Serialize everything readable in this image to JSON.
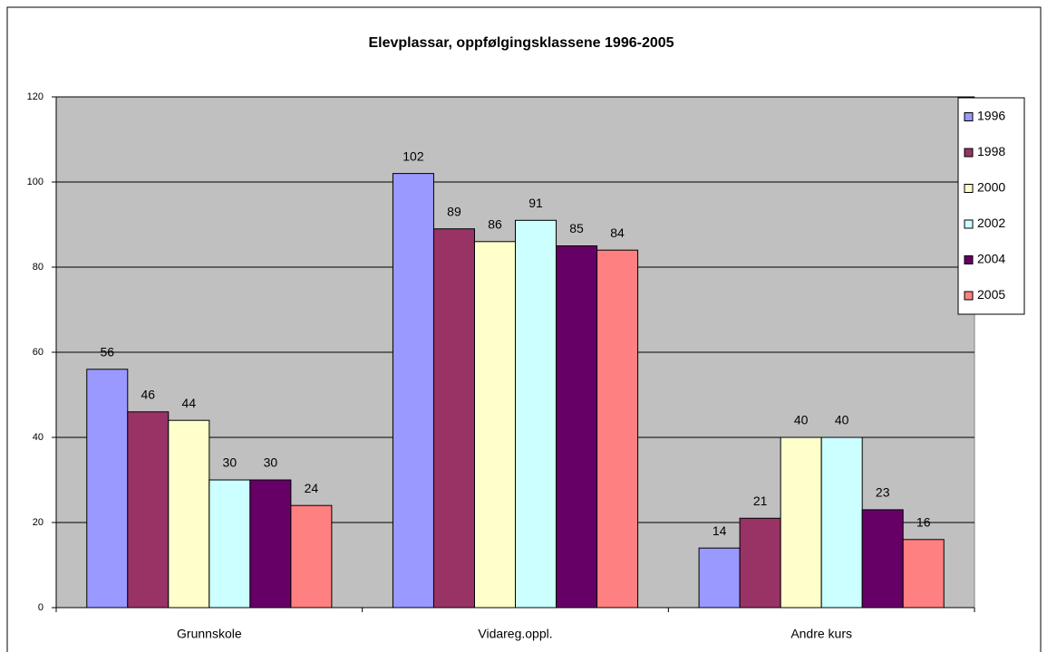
{
  "chart_data": {
    "type": "bar",
    "title": "Elevplassar, oppfølgingsklassene 1996-2005",
    "categories": [
      "Grunnskole",
      "Vidareg.oppl.",
      "Andre kurs"
    ],
    "series": [
      {
        "name": "1996",
        "color": "#9999ff",
        "values": [
          56,
          102,
          14
        ]
      },
      {
        "name": "1998",
        "color": "#993366",
        "values": [
          46,
          89,
          21
        ]
      },
      {
        "name": "2000",
        "color": "#ffffcc",
        "values": [
          44,
          86,
          40
        ]
      },
      {
        "name": "2002",
        "color": "#ccffff",
        "values": [
          30,
          91,
          40
        ]
      },
      {
        "name": "2004",
        "color": "#660066",
        "values": [
          30,
          85,
          23
        ]
      },
      {
        "name": "2005",
        "color": "#ff8080",
        "values": [
          24,
          84,
          16
        ]
      }
    ],
    "ylim": [
      0,
      120
    ],
    "yticks": [
      0,
      20,
      40,
      60,
      80,
      100,
      120
    ],
    "grid": true,
    "legend": "right"
  }
}
